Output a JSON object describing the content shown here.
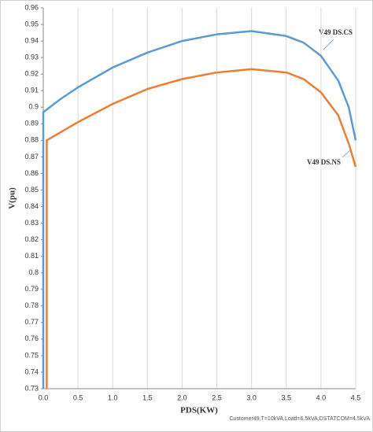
{
  "chart_data": {
    "type": "line",
    "x_label": "PDS(KW)",
    "y_label": "V(pu)",
    "note": "Customer49,T=10kVA,Load=6.5kVA,DSTATCOM=4.5kVA",
    "annotations": [
      "V49 DS.CS",
      "V49 DS.NS"
    ],
    "xlim": [
      0,
      4.5
    ],
    "ylim": [
      0.73,
      0.96
    ],
    "xticks": [
      {
        "value": 0,
        "label": "0.0"
      },
      0.5,
      {
        "value": 1,
        "label": "1.0"
      },
      1.5,
      {
        "value": 2,
        "label": "2.0"
      },
      2.5,
      {
        "value": 3,
        "label": "3.0"
      },
      3.5,
      {
        "value": 4,
        "label": "4.0"
      },
      4.5
    ],
    "yticks": [
      0.73,
      0.74,
      0.75,
      0.76,
      0.77,
      0.78,
      0.79,
      0.8,
      0.81,
      0.82,
      0.83,
      0.84,
      0.85,
      0.86,
      0.87,
      0.88,
      0.89,
      0.9,
      0.91,
      0.92,
      0.93,
      0.94,
      0.95,
      0.96
    ],
    "grid": true,
    "series": [
      {
        "color": "#5b9bd5",
        "x": [
          0,
          0,
          0.25,
          0.5,
          1.0,
          1.5,
          2.0,
          2.5,
          3.0,
          3.5,
          3.75,
          4.0,
          4.25,
          4.4,
          4.5
        ],
        "values": [
          0.73,
          0.897,
          0.905,
          0.912,
          0.924,
          0.933,
          0.94,
          0.944,
          0.946,
          0.943,
          0.939,
          0.931,
          0.916,
          0.9,
          0.88
        ]
      },
      {
        "color": "#ed7d31",
        "x": [
          0.05,
          0.05,
          0.5,
          1.0,
          1.5,
          2.0,
          2.5,
          3.0,
          3.5,
          3.75,
          4.0,
          4.25,
          4.4,
          4.5
        ],
        "values": [
          0.73,
          0.88,
          0.891,
          0.902,
          0.911,
          0.917,
          0.921,
          0.923,
          0.921,
          0.917,
          0.909,
          0.895,
          0.878,
          0.864
        ]
      }
    ]
  }
}
